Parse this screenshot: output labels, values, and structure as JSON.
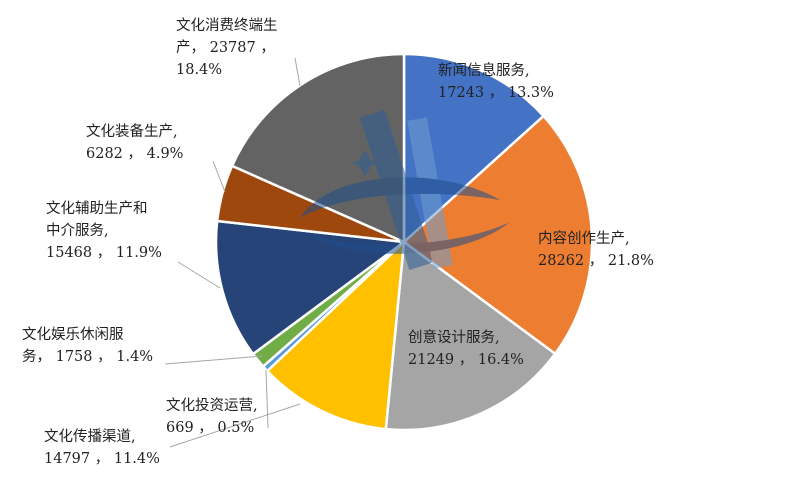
{
  "chart_data": {
    "type": "pie",
    "title": "",
    "legend": "none",
    "slices": [
      {
        "name": "新闻信息服务",
        "value": 17243,
        "percent": "13.3%",
        "color": "#4472c4",
        "label_lines": [
          "新闻信息服务,",
          "17243 ， 13.3%"
        ]
      },
      {
        "name": "内容创作生产",
        "value": 28262,
        "percent": "21.8%",
        "color": "#ed7d31",
        "label_lines": [
          "内容创作生产,",
          "28262 ， 21.8%"
        ]
      },
      {
        "name": "创意设计服务",
        "value": 21249,
        "percent": "16.4%",
        "color": "#a5a5a5",
        "label_lines": [
          "创意设计服务,",
          "21249 ， 16.4%"
        ]
      },
      {
        "name": "文化传播渠道",
        "value": 14797,
        "percent": "11.4%",
        "color": "#ffc000",
        "label_lines": [
          "文化传播渠道,",
          "14797 ， 11.4%"
        ]
      },
      {
        "name": "文化投资运营",
        "value": 669,
        "percent": "0.5%",
        "color": "#5b9bd5",
        "label_lines": [
          "文化投资运营,",
          "669 ， 0.5%"
        ]
      },
      {
        "name": "文化娱乐休闲服务",
        "value": 1758,
        "percent": "1.4%",
        "color": "#70ad47",
        "label_lines": [
          "文化娱乐休闲服",
          "务， 1758 ， 1.4%"
        ]
      },
      {
        "name": "文化辅助生产和中介服务",
        "value": 15468,
        "percent": "11.9%",
        "color": "#264478",
        "label_lines": [
          "文化辅助生产和",
          "中介服务,",
          "15468 ， 11.9%"
        ]
      },
      {
        "name": "文化装备生产",
        "value": 6282,
        "percent": "4.9%",
        "color": "#9e480e",
        "label_lines": [
          "文化装备生产,",
          "6282 ， 4.9%"
        ]
      },
      {
        "name": "文化消费终端生产",
        "value": 23787,
        "percent": "18.4%",
        "color": "#636363",
        "label_lines": [
          "文化消费终端生",
          "产， 23787 ，",
          "18.4%"
        ]
      }
    ]
  }
}
